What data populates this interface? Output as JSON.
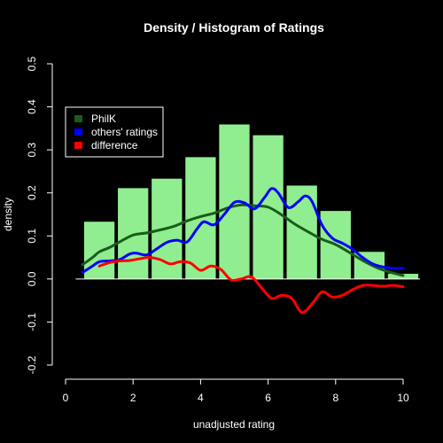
{
  "chart_data": {
    "type": "bar",
    "title": "Density / Histogram of Ratings",
    "xlabel": "unadjusted rating",
    "ylabel": "density",
    "xlim": [
      0,
      10
    ],
    "ylim": [
      -0.2,
      0.5
    ],
    "x_ticks": [
      "0",
      "2",
      "4",
      "6",
      "8",
      "10"
    ],
    "y_ticks": [
      "-0.2",
      "-0.1",
      "0.0",
      "0.1",
      "0.2",
      "0.3",
      "0.4",
      "0.5"
    ],
    "grid": false,
    "legend_position": "top-left",
    "histogram": {
      "color": "#90ee90",
      "bins": [
        {
          "x0": 0.5,
          "x1": 1.5,
          "value": 0.133
        },
        {
          "x0": 1.5,
          "x1": 2.5,
          "value": 0.211
        },
        {
          "x0": 2.5,
          "x1": 3.5,
          "value": 0.233
        },
        {
          "x0": 3.5,
          "x1": 4.5,
          "value": 0.283
        },
        {
          "x0": 4.5,
          "x1": 5.5,
          "value": 0.359
        },
        {
          "x0": 5.5,
          "x1": 6.5,
          "value": 0.334
        },
        {
          "x0": 6.5,
          "x1": 7.5,
          "value": 0.217
        },
        {
          "x0": 7.5,
          "x1": 8.5,
          "value": 0.158
        },
        {
          "x0": 8.5,
          "x1": 9.5,
          "value": 0.063
        },
        {
          "x0": 9.5,
          "x1": 10.5,
          "value": 0.012
        }
      ]
    },
    "series": [
      {
        "name": "PhilK",
        "color": "#1a5c1a",
        "x": [
          0.5,
          0.8,
          1.0,
          1.3,
          1.6,
          2.0,
          2.4,
          2.8,
          3.2,
          3.6,
          4.0,
          4.4,
          4.8,
          5.2,
          5.6,
          6.0,
          6.4,
          6.8,
          7.2,
          7.6,
          8.0,
          8.4,
          8.8,
          9.2,
          9.6,
          10.0
        ],
        "y": [
          0.033,
          0.05,
          0.063,
          0.073,
          0.086,
          0.102,
          0.107,
          0.114,
          0.122,
          0.135,
          0.145,
          0.153,
          0.165,
          0.172,
          0.17,
          0.167,
          0.149,
          0.127,
          0.109,
          0.092,
          0.08,
          0.062,
          0.043,
          0.027,
          0.016,
          0.008
        ]
      },
      {
        "name": "others' ratings",
        "color": "#0000ff",
        "x": [
          0.5,
          0.8,
          1.0,
          1.3,
          1.6,
          1.9,
          2.1,
          2.4,
          2.7,
          3.0,
          3.3,
          3.6,
          3.9,
          4.1,
          4.4,
          4.7,
          5.0,
          5.3,
          5.6,
          5.9,
          6.1,
          6.3,
          6.6,
          6.9,
          7.1,
          7.3,
          7.6,
          7.9,
          8.2,
          8.5,
          8.8,
          9.1,
          9.4,
          9.7,
          10.0
        ],
        "y": [
          0.015,
          0.03,
          0.04,
          0.042,
          0.045,
          0.058,
          0.06,
          0.056,
          0.07,
          0.085,
          0.09,
          0.086,
          0.117,
          0.133,
          0.126,
          0.15,
          0.178,
          0.177,
          0.163,
          0.19,
          0.21,
          0.2,
          0.166,
          0.18,
          0.193,
          0.18,
          0.125,
          0.095,
          0.083,
          0.069,
          0.05,
          0.035,
          0.028,
          0.025,
          0.025
        ]
      },
      {
        "name": "difference",
        "color": "#ff0000",
        "x": [
          1.0,
          1.3,
          1.6,
          1.9,
          2.2,
          2.5,
          2.8,
          3.1,
          3.4,
          3.7,
          4.0,
          4.3,
          4.6,
          4.9,
          5.2,
          5.5,
          5.8,
          6.1,
          6.4,
          6.7,
          7.0,
          7.3,
          7.6,
          7.9,
          8.2,
          8.5,
          8.8,
          9.1,
          9.4,
          9.7,
          10.0
        ],
        "y": [
          0.03,
          0.038,
          0.042,
          0.043,
          0.047,
          0.05,
          0.045,
          0.035,
          0.04,
          0.037,
          0.02,
          0.03,
          0.022,
          -0.002,
          0.0,
          0.005,
          -0.02,
          -0.045,
          -0.038,
          -0.045,
          -0.078,
          -0.058,
          -0.03,
          -0.042,
          -0.038,
          -0.025,
          -0.015,
          -0.015,
          -0.017,
          -0.015,
          -0.018
        ]
      }
    ]
  }
}
